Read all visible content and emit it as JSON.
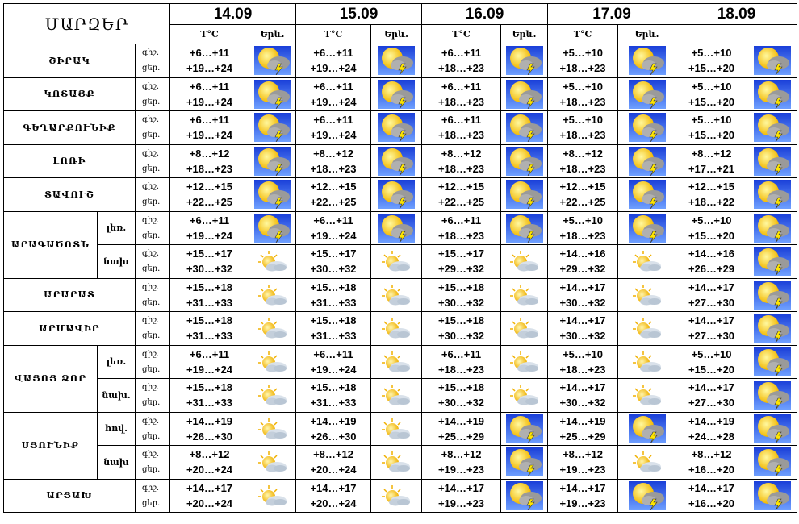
{
  "header": {
    "regions_title": "ՄԱՐԶԵՐ",
    "dates": [
      "14.09",
      "15.09",
      "16.09",
      "17.09",
      "18.09"
    ],
    "temp_label": "T°C",
    "weather_label": "Երև."
  },
  "labels": {
    "night": "գիշ.",
    "day": "ցեր."
  },
  "groups": [
    {
      "region": "ՇԻՐԱԿ",
      "rows": [
        {
          "zone": "",
          "night_label": "գիշ.",
          "day_label": "ցեր.",
          "days": [
            {
              "t1": "+6…+11",
              "t2": "+19…+24",
              "icon": "storm-icon"
            },
            {
              "t1": "+6…+11",
              "t2": "+19…+24",
              "icon": "storm-icon"
            },
            {
              "t1": "+6…+11",
              "t2": "+18…+23",
              "icon": "storm-icon"
            },
            {
              "t1": "+5…+10",
              "t2": "+18…+23",
              "icon": "storm-icon"
            },
            {
              "t1": "+5…+10",
              "t2": "+15…+20",
              "icon": "storm-icon"
            }
          ]
        }
      ]
    },
    {
      "region": "ԿՈՏԱՅՔ",
      "rows": [
        {
          "zone": "",
          "night_label": "գիշ.",
          "day_label": "ցեր.",
          "days": [
            {
              "t1": "+6…+11",
              "t2": "+19…+24",
              "icon": "storm-icon"
            },
            {
              "t1": "+6…+11",
              "t2": "+19…+24",
              "icon": "storm-icon"
            },
            {
              "t1": "+6…+11",
              "t2": "+18…+23",
              "icon": "storm-icon"
            },
            {
              "t1": "+5…+10",
              "t2": "+18…+23",
              "icon": "storm-icon"
            },
            {
              "t1": "+5…+10",
              "t2": "+15…+20",
              "icon": "storm-icon"
            }
          ]
        }
      ]
    },
    {
      "region": "ԳԵՂԱՐՔՈՒՆԻՔ",
      "rows": [
        {
          "zone": "",
          "night_label": "գիշ.",
          "day_label": "ցեր.",
          "days": [
            {
              "t1": "+6…+11",
              "t2": "+19…+24",
              "icon": "storm-icon"
            },
            {
              "t1": "+6…+11",
              "t2": "+19…+24",
              "icon": "storm-icon"
            },
            {
              "t1": "+6…+11",
              "t2": "+18…+23",
              "icon": "storm-icon"
            },
            {
              "t1": "+5…+10",
              "t2": "+18…+23",
              "icon": "storm-icon"
            },
            {
              "t1": "+5…+10",
              "t2": "+15…+20",
              "icon": "storm-icon"
            }
          ]
        }
      ]
    },
    {
      "region": "ԼՈՌԻ",
      "rows": [
        {
          "zone": "",
          "night_label": "գիշ.",
          "day_label": "ցեր.",
          "days": [
            {
              "t1": "+8…+12",
              "t2": "+18…+23",
              "icon": "storm-icon"
            },
            {
              "t1": "+8…+12",
              "t2": "+18…+23",
              "icon": "storm-icon"
            },
            {
              "t1": "+8…+12",
              "t2": "+18…+23",
              "icon": "storm-icon"
            },
            {
              "t1": "+8…+12",
              "t2": "+18…+23",
              "icon": "storm-icon"
            },
            {
              "t1": "+8…+12",
              "t2": "+17…+21",
              "icon": "storm-icon"
            }
          ]
        }
      ]
    },
    {
      "region": "ՏԱՎՈՒՇ",
      "rows": [
        {
          "zone": "",
          "night_label": "գիշ.",
          "day_label": "ցեր.",
          "days": [
            {
              "t1": "+12…+15",
              "t2": "+22…+25",
              "icon": "storm-icon"
            },
            {
              "t1": "+12…+15",
              "t2": "+22…+25",
              "icon": "storm-icon"
            },
            {
              "t1": "+12…+15",
              "t2": "+22…+25",
              "icon": "storm-icon"
            },
            {
              "t1": "+12…+15",
              "t2": "+22…+25",
              "icon": "storm-icon"
            },
            {
              "t1": "+12…+15",
              "t2": "+18…+22",
              "icon": "storm-icon"
            }
          ]
        }
      ]
    },
    {
      "region": "ԱՐԱԳԱԾՈՏՆ",
      "rows": [
        {
          "zone": "լեռ.",
          "night_label": "գիշ.",
          "day_label": "ցեր.",
          "days": [
            {
              "t1": "+6…+11",
              "t2": "+19…+24",
              "icon": "storm-icon"
            },
            {
              "t1": "+6…+11",
              "t2": "+19…+24",
              "icon": "storm-icon"
            },
            {
              "t1": "+6…+11",
              "t2": "+18…+23",
              "icon": "storm-icon"
            },
            {
              "t1": "+5…+10",
              "t2": "+18…+23",
              "icon": "storm-icon"
            },
            {
              "t1": "+5…+10",
              "t2": "+15…+20",
              "icon": "storm-icon"
            }
          ]
        },
        {
          "zone": "նախ",
          "night_label": "գիշ.",
          "day_label": "ցեր.",
          "days": [
            {
              "t1": "+15…+17",
              "t2": "+30…+32",
              "icon": "partly-cloudy-icon"
            },
            {
              "t1": "+15…+17",
              "t2": "+30…+32",
              "icon": "partly-cloudy-icon"
            },
            {
              "t1": "+15…+17",
              "t2": "+29…+32",
              "icon": "partly-cloudy-icon"
            },
            {
              "t1": "+14…+16",
              "t2": "+29…+32",
              "icon": "partly-cloudy-icon"
            },
            {
              "t1": "+14…+16",
              "t2": "+26…+29",
              "icon": "storm-icon"
            }
          ]
        }
      ]
    },
    {
      "region": "ԱՐԱՐԱՏ",
      "rows": [
        {
          "zone": "",
          "night_label": "գիշ.",
          "day_label": "ցեր.",
          "days": [
            {
              "t1": "+15…+18",
              "t2": "+31…+33",
              "icon": "partly-cloudy-icon"
            },
            {
              "t1": "+15…+18",
              "t2": "+31…+33",
              "icon": "partly-cloudy-icon"
            },
            {
              "t1": "+15…+18",
              "t2": "+30…+32",
              "icon": "partly-cloudy-icon"
            },
            {
              "t1": "+14…+17",
              "t2": "+30…+32",
              "icon": "partly-cloudy-icon"
            },
            {
              "t1": "+14…+17",
              "t2": "+27…+30",
              "icon": "storm-icon"
            }
          ]
        }
      ]
    },
    {
      "region": "ԱՐՄԱՎԻՐ",
      "rows": [
        {
          "zone": "",
          "night_label": "գիշ.",
          "day_label": "ցեր.",
          "days": [
            {
              "t1": "+15…+18",
              "t2": "+31…+33",
              "icon": "partly-cloudy-icon"
            },
            {
              "t1": "+15…+18",
              "t2": "+31…+33",
              "icon": "partly-cloudy-icon"
            },
            {
              "t1": "+15…+18",
              "t2": "+30…+32",
              "icon": "partly-cloudy-icon"
            },
            {
              "t1": "+14…+17",
              "t2": "+30…+32",
              "icon": "partly-cloudy-icon"
            },
            {
              "t1": "+14…+17",
              "t2": "+27…+30",
              "icon": "storm-icon"
            }
          ]
        }
      ]
    },
    {
      "region": "ՎԱՅՈՑ ՁՈՐ",
      "rows": [
        {
          "zone": "լեռ.",
          "night_label": "գիշ.",
          "day_label": "ցեր.",
          "days": [
            {
              "t1": "+6…+11",
              "t2": "+19…+24",
              "icon": "partly-cloudy-icon"
            },
            {
              "t1": "+6…+11",
              "t2": "+19…+24",
              "icon": "partly-cloudy-icon"
            },
            {
              "t1": "+6…+11",
              "t2": "+18…+23",
              "icon": "partly-cloudy-icon"
            },
            {
              "t1": "+5…+10",
              "t2": "+18…+23",
              "icon": "partly-cloudy-icon"
            },
            {
              "t1": "+5…+10",
              "t2": "+15…+20",
              "icon": "storm-icon"
            }
          ]
        },
        {
          "zone": "նախ.",
          "night_label": "գիշ.",
          "day_label": "ցեր.",
          "days": [
            {
              "t1": "+15…+18",
              "t2": "+31…+33",
              "icon": "partly-cloudy-icon"
            },
            {
              "t1": "+15…+18",
              "t2": "+31…+33",
              "icon": "partly-cloudy-icon"
            },
            {
              "t1": "+15…+18",
              "t2": "+30…+32",
              "icon": "partly-cloudy-icon"
            },
            {
              "t1": "+14…+17",
              "t2": "+30…+32",
              "icon": "partly-cloudy-icon"
            },
            {
              "t1": "+14…+17",
              "t2": "+27…+30",
              "icon": "storm-icon"
            }
          ]
        }
      ]
    },
    {
      "region": "ՍՅՈՒՆԻՔ",
      "rows": [
        {
          "zone": "հով.",
          "night_label": "գիշ.",
          "day_label": "ցեր.",
          "days": [
            {
              "t1": "+14…+19",
              "t2": "+26…+30",
              "icon": "partly-cloudy-icon"
            },
            {
              "t1": "+14…+19",
              "t2": "+26…+30",
              "icon": "partly-cloudy-icon"
            },
            {
              "t1": "+14…+19",
              "t2": "+25…+29",
              "icon": "storm-icon"
            },
            {
              "t1": "+14…+19",
              "t2": "+25…+29",
              "icon": "storm-icon"
            },
            {
              "t1": "+14…+19",
              "t2": "+24…+28",
              "icon": "storm-icon"
            }
          ]
        },
        {
          "zone": "նախ",
          "night_label": "գիշ.",
          "day_label": "ցեր.",
          "days": [
            {
              "t1": "+8…+12",
              "t2": "+20…+24",
              "icon": "partly-cloudy-icon"
            },
            {
              "t1": "+8…+12",
              "t2": "+20…+24",
              "icon": "partly-cloudy-icon"
            },
            {
              "t1": "+8…+12",
              "t2": "+19…+23",
              "icon": "storm-icon"
            },
            {
              "t1": "+8…+12",
              "t2": "+19…+23",
              "icon": "partly-cloudy-icon"
            },
            {
              "t1": "+8…+12",
              "t2": "+16…+20",
              "icon": "storm-icon"
            }
          ]
        }
      ]
    },
    {
      "region": "ԱՐՑԱԽ",
      "rows": [
        {
          "zone": "",
          "night_label": "գիշ.",
          "day_label": "ցեր.",
          "days": [
            {
              "t1": "+14…+17",
              "t2": "+20…+24",
              "icon": "partly-cloudy-icon"
            },
            {
              "t1": "+14…+17",
              "t2": "+20…+24",
              "icon": "partly-cloudy-icon"
            },
            {
              "t1": "+14…+17",
              "t2": "+19…+23",
              "icon": "storm-icon"
            },
            {
              "t1": "+14…+17",
              "t2": "+19…+23",
              "icon": "storm-icon"
            },
            {
              "t1": "+14…+17",
              "t2": "+16…+20",
              "icon": "storm-icon"
            }
          ]
        }
      ]
    }
  ]
}
